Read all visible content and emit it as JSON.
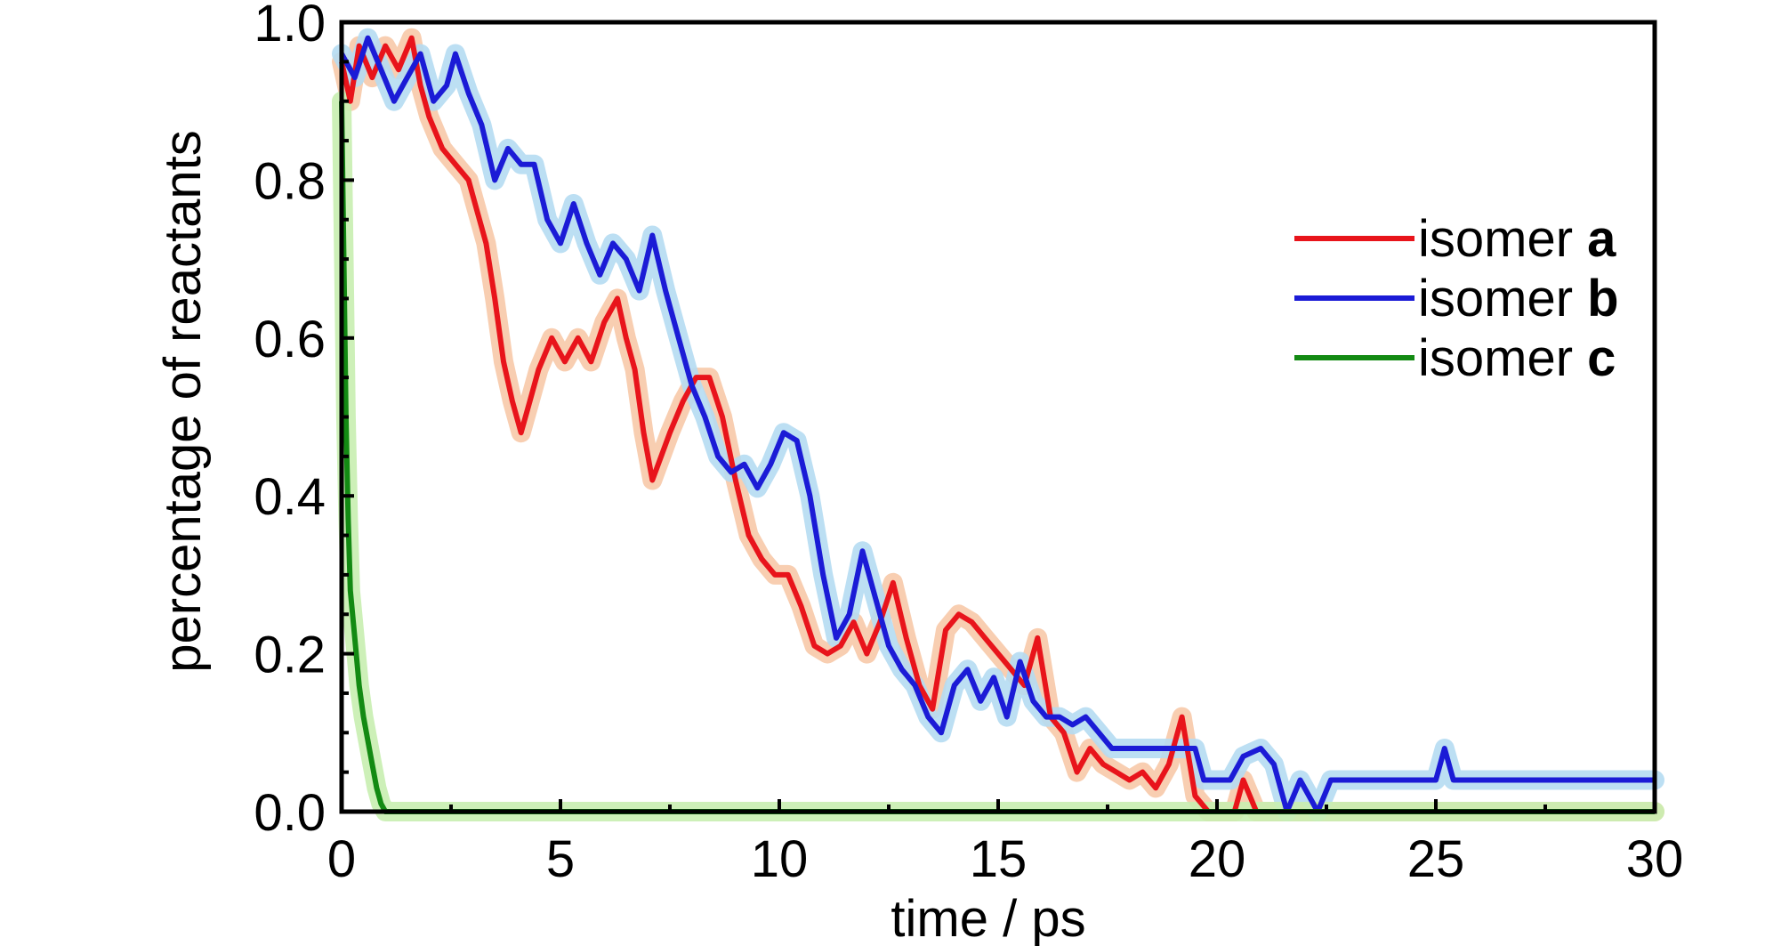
{
  "chart_data": {
    "type": "line",
    "xlabel": "time / ps",
    "ylabel": "percentage of reactants",
    "xlim": [
      0,
      30
    ],
    "ylim": [
      0,
      1.0
    ],
    "xticks": [
      "0",
      "5",
      "10",
      "15",
      "20",
      "25",
      "30"
    ],
    "yticks": [
      "0.0",
      "0.2",
      "0.4",
      "0.6",
      "0.8",
      "1.0"
    ],
    "grid": false,
    "legend_position": "top-right",
    "series": [
      {
        "name": "isomer a",
        "name_prefix": "isomer ",
        "name_bold": "a",
        "color": "#e8141b",
        "band_color": "#f7c9a8",
        "points": [
          [
            0,
            0.95
          ],
          [
            0.2,
            0.9
          ],
          [
            0.4,
            0.97
          ],
          [
            0.7,
            0.93
          ],
          [
            1.0,
            0.97
          ],
          [
            1.3,
            0.94
          ],
          [
            1.6,
            0.98
          ],
          [
            1.8,
            0.92
          ],
          [
            2.0,
            0.88
          ],
          [
            2.3,
            0.84
          ],
          [
            2.6,
            0.82
          ],
          [
            2.9,
            0.8
          ],
          [
            3.1,
            0.76
          ],
          [
            3.3,
            0.72
          ],
          [
            3.5,
            0.65
          ],
          [
            3.7,
            0.57
          ],
          [
            3.9,
            0.52
          ],
          [
            4.1,
            0.48
          ],
          [
            4.3,
            0.52
          ],
          [
            4.5,
            0.56
          ],
          [
            4.8,
            0.6
          ],
          [
            5.1,
            0.57
          ],
          [
            5.4,
            0.6
          ],
          [
            5.7,
            0.57
          ],
          [
            6.0,
            0.62
          ],
          [
            6.3,
            0.65
          ],
          [
            6.5,
            0.6
          ],
          [
            6.7,
            0.56
          ],
          [
            6.9,
            0.48
          ],
          [
            7.1,
            0.42
          ],
          [
            7.3,
            0.45
          ],
          [
            7.5,
            0.48
          ],
          [
            7.8,
            0.52
          ],
          [
            8.1,
            0.55
          ],
          [
            8.4,
            0.55
          ],
          [
            8.7,
            0.5
          ],
          [
            9.0,
            0.42
          ],
          [
            9.3,
            0.35
          ],
          [
            9.6,
            0.32
          ],
          [
            9.9,
            0.3
          ],
          [
            10.2,
            0.3
          ],
          [
            10.5,
            0.26
          ],
          [
            10.8,
            0.21
          ],
          [
            11.1,
            0.2
          ],
          [
            11.4,
            0.21
          ],
          [
            11.7,
            0.24
          ],
          [
            12.0,
            0.2
          ],
          [
            12.3,
            0.24
          ],
          [
            12.6,
            0.29
          ],
          [
            12.9,
            0.22
          ],
          [
            13.2,
            0.16
          ],
          [
            13.5,
            0.13
          ],
          [
            13.8,
            0.23
          ],
          [
            14.1,
            0.25
          ],
          [
            14.4,
            0.24
          ],
          [
            14.7,
            0.22
          ],
          [
            15.0,
            0.2
          ],
          [
            15.3,
            0.18
          ],
          [
            15.6,
            0.16
          ],
          [
            15.9,
            0.22
          ],
          [
            16.2,
            0.12
          ],
          [
            16.5,
            0.1
          ],
          [
            16.8,
            0.05
          ],
          [
            17.1,
            0.08
          ],
          [
            17.4,
            0.06
          ],
          [
            17.7,
            0.05
          ],
          [
            18.0,
            0.04
          ],
          [
            18.3,
            0.05
          ],
          [
            18.6,
            0.03
          ],
          [
            18.9,
            0.06
          ],
          [
            19.2,
            0.12
          ],
          [
            19.5,
            0.02
          ],
          [
            19.8,
            0.0
          ],
          [
            20.4,
            0.0
          ],
          [
            20.6,
            0.04
          ],
          [
            20.9,
            0.0
          ],
          [
            30,
            0.0
          ]
        ]
      },
      {
        "name": "isomer b",
        "name_prefix": "isomer ",
        "name_bold": "b",
        "color": "#1b1bd6",
        "band_color": "#b5dcf2",
        "points": [
          [
            0,
            0.96
          ],
          [
            0.3,
            0.93
          ],
          [
            0.6,
            0.98
          ],
          [
            0.9,
            0.94
          ],
          [
            1.2,
            0.9
          ],
          [
            1.5,
            0.93
          ],
          [
            1.8,
            0.96
          ],
          [
            2.1,
            0.9
          ],
          [
            2.4,
            0.92
          ],
          [
            2.6,
            0.96
          ],
          [
            2.9,
            0.91
          ],
          [
            3.2,
            0.87
          ],
          [
            3.5,
            0.8
          ],
          [
            3.8,
            0.84
          ],
          [
            4.1,
            0.82
          ],
          [
            4.4,
            0.82
          ],
          [
            4.7,
            0.75
          ],
          [
            5.0,
            0.72
          ],
          [
            5.3,
            0.77
          ],
          [
            5.6,
            0.72
          ],
          [
            5.9,
            0.68
          ],
          [
            6.2,
            0.72
          ],
          [
            6.5,
            0.7
          ],
          [
            6.8,
            0.66
          ],
          [
            7.1,
            0.73
          ],
          [
            7.4,
            0.66
          ],
          [
            7.7,
            0.6
          ],
          [
            8.0,
            0.54
          ],
          [
            8.3,
            0.5
          ],
          [
            8.6,
            0.45
          ],
          [
            8.9,
            0.43
          ],
          [
            9.2,
            0.44
          ],
          [
            9.5,
            0.41
          ],
          [
            9.8,
            0.44
          ],
          [
            10.1,
            0.48
          ],
          [
            10.4,
            0.47
          ],
          [
            10.7,
            0.4
          ],
          [
            11.0,
            0.3
          ],
          [
            11.3,
            0.22
          ],
          [
            11.6,
            0.25
          ],
          [
            11.9,
            0.33
          ],
          [
            12.2,
            0.27
          ],
          [
            12.5,
            0.21
          ],
          [
            12.8,
            0.18
          ],
          [
            13.1,
            0.16
          ],
          [
            13.4,
            0.12
          ],
          [
            13.7,
            0.1
          ],
          [
            14.0,
            0.16
          ],
          [
            14.3,
            0.18
          ],
          [
            14.6,
            0.14
          ],
          [
            14.9,
            0.17
          ],
          [
            15.2,
            0.12
          ],
          [
            15.5,
            0.19
          ],
          [
            15.8,
            0.14
          ],
          [
            16.1,
            0.12
          ],
          [
            16.4,
            0.12
          ],
          [
            16.7,
            0.11
          ],
          [
            17.0,
            0.12
          ],
          [
            17.3,
            0.1
          ],
          [
            17.6,
            0.08
          ],
          [
            18.0,
            0.08
          ],
          [
            18.5,
            0.08
          ],
          [
            19.0,
            0.08
          ],
          [
            19.5,
            0.08
          ],
          [
            19.7,
            0.04
          ],
          [
            20.3,
            0.04
          ],
          [
            20.6,
            0.07
          ],
          [
            21.0,
            0.08
          ],
          [
            21.3,
            0.06
          ],
          [
            21.6,
            0.0
          ],
          [
            21.9,
            0.04
          ],
          [
            22.3,
            0.0
          ],
          [
            22.6,
            0.04
          ],
          [
            25.0,
            0.04
          ],
          [
            25.2,
            0.08
          ],
          [
            25.4,
            0.04
          ],
          [
            30,
            0.04
          ]
        ]
      },
      {
        "name": "isomer c",
        "name_prefix": "isomer ",
        "name_bold": "c",
        "color": "#138a13",
        "band_color": "#c8eeb0",
        "points": [
          [
            0,
            0.9
          ],
          [
            0.05,
            0.7
          ],
          [
            0.1,
            0.5
          ],
          [
            0.15,
            0.37
          ],
          [
            0.2,
            0.28
          ],
          [
            0.3,
            0.22
          ],
          [
            0.4,
            0.16
          ],
          [
            0.5,
            0.12
          ],
          [
            0.6,
            0.09
          ],
          [
            0.7,
            0.06
          ],
          [
            0.8,
            0.03
          ],
          [
            0.9,
            0.01
          ],
          [
            1.0,
            0.0
          ],
          [
            30,
            0.0
          ]
        ]
      }
    ]
  }
}
